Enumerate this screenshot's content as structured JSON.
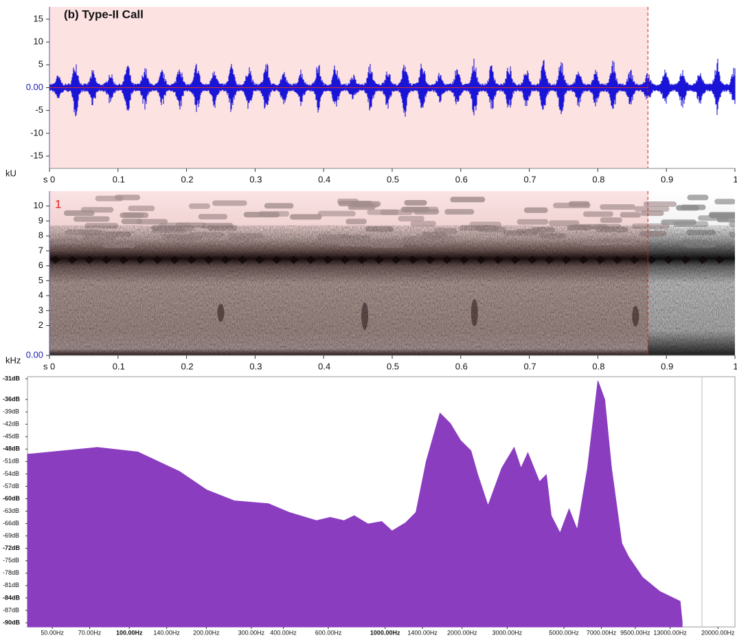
{
  "chart_data": [
    {
      "type": "waveform",
      "title": "(b) Type-II Call",
      "ylabel": "kU",
      "xlabel": "s",
      "color": "#1a14d6",
      "selection": [
        0,
        0.873
      ],
      "xlim": [
        0,
        1
      ],
      "xticks": [
        0,
        0.1,
        0.2,
        0.3,
        0.4,
        0.5,
        0.6,
        0.7,
        0.8,
        0.9,
        1
      ],
      "ylim": [
        -17.7,
        17.7
      ],
      "yticks": [
        15,
        10,
        5,
        {
          "value": 0,
          "label": "0.00"
        },
        -5,
        -10,
        -15
      ]
    },
    {
      "type": "spectrogram",
      "ylabel": "kHz",
      "xlabel": "s",
      "channel": "1",
      "xlim": [
        0,
        1
      ],
      "xticks": [
        0,
        0.1,
        0.2,
        0.3,
        0.4,
        0.5,
        0.6,
        0.7,
        0.8,
        0.9,
        1
      ],
      "ylim": [
        0,
        11
      ],
      "yticks": [
        10,
        9,
        8,
        7,
        6,
        5,
        4,
        3,
        2,
        {
          "value": 0,
          "label": "0.00"
        }
      ]
    },
    {
      "type": "area",
      "log_x": true,
      "color": "#8a3dbf",
      "xlim": [
        40,
        23300
      ],
      "ylim": [
        -91,
        -30.5
      ],
      "xticks": [
        {
          "value": 50,
          "label": "50.00Hz"
        },
        {
          "value": 70,
          "label": "70.00Hz"
        },
        {
          "value": 100,
          "label": "100.00Hz"
        },
        {
          "value": 140,
          "label": "140.00Hz"
        },
        {
          "value": 200,
          "label": "200.00Hz"
        },
        {
          "value": 300,
          "label": "300.00Hz"
        },
        {
          "value": 400,
          "label": "400.00Hz"
        },
        {
          "value": 600,
          "label": "600.00Hz"
        },
        {
          "value": 1000,
          "label": "1000.00Hz"
        },
        {
          "value": 1400,
          "label": "1400.00Hz"
        },
        {
          "value": 2000,
          "label": "2000.00Hz"
        },
        {
          "value": 3000,
          "label": "3000.00Hz"
        },
        {
          "value": 5000,
          "label": "5000.00Hz"
        },
        {
          "value": 7000,
          "label": "7000.00Hz"
        },
        {
          "value": 9500,
          "label": "9500.00Hz"
        },
        {
          "value": 13000,
          "label": "13000.00Hz"
        },
        {
          "value": 20000,
          "label": "20000.00Hz"
        }
      ],
      "yticks": [
        {
          "value": -31,
          "label": "-31dB"
        },
        {
          "value": -36,
          "label": "-36dB"
        },
        {
          "value": -39,
          "label": "-39dB"
        },
        {
          "value": -42,
          "label": "-42dB"
        },
        {
          "value": -45,
          "label": "-45dB"
        },
        {
          "value": -48,
          "label": "-48dB"
        },
        {
          "value": -51,
          "label": "-51dB"
        },
        {
          "value": -54,
          "label": "-54dB"
        },
        {
          "value": -57,
          "label": "-57dB"
        },
        {
          "value": -60,
          "label": "-60dB"
        },
        {
          "value": -63,
          "label": "-63dB"
        },
        {
          "value": -66,
          "label": "-66dB"
        },
        {
          "value": -69,
          "label": "-69dB"
        },
        {
          "value": -72,
          "label": "-72dB"
        },
        {
          "value": -75,
          "label": "-75dB"
        },
        {
          "value": -78,
          "label": "-78dB"
        },
        {
          "value": -81,
          "label": "-81dB"
        },
        {
          "value": -84,
          "label": "-84dB"
        },
        {
          "value": -87,
          "label": "-87dB"
        },
        {
          "value": -90,
          "label": "-90dB"
        }
      ],
      "x": [
        41,
        75,
        108,
        157,
        201,
        257,
        350,
        421,
        539,
        610,
        690,
        757,
        857,
        970,
        1064,
        1203,
        1320,
        1449,
        1639,
        1798,
        1972,
        2164,
        2302,
        2525,
        2857,
        3193,
        3396,
        3613,
        4012,
        4267,
        4458,
        4830,
        5235,
        5637,
        6184,
        6786,
        7215,
        7674,
        8415,
        8953,
        10140,
        11830,
        14230,
        14490
      ],
      "values": [
        -49.2,
        -47.6,
        -48.7,
        -53.4,
        -57.9,
        -60.5,
        -61.2,
        -63.3,
        -65.3,
        -64.5,
        -65.3,
        -64.1,
        -66.1,
        -65.5,
        -67.8,
        -65.8,
        -63.3,
        -50.9,
        -39.3,
        -41.8,
        -45.9,
        -48.4,
        -54.2,
        -61.7,
        -52.6,
        -47.6,
        -52.6,
        -48.9,
        -55.9,
        -54.2,
        -64.1,
        -68.3,
        -62.5,
        -67.5,
        -52.6,
        -31.5,
        -36,
        -52.6,
        -70.8,
        -74.1,
        -79.0,
        -82.4,
        -84.8,
        -89.8
      ]
    }
  ]
}
